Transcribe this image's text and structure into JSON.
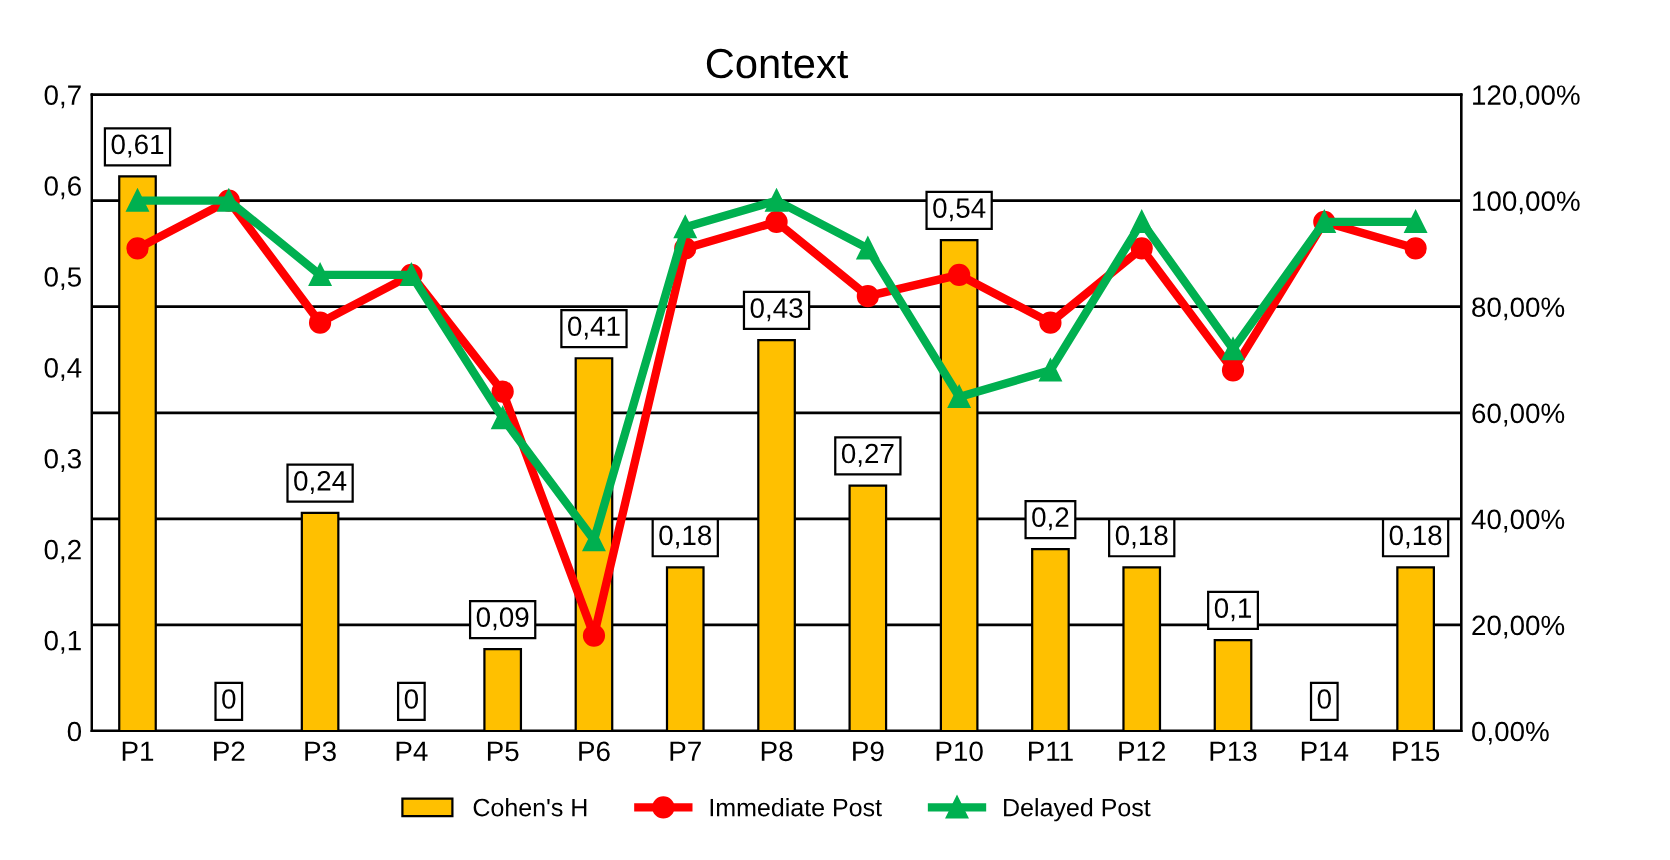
{
  "chart_data": {
    "type": "bar",
    "title": "Context",
    "categories": [
      "P1",
      "P2",
      "P3",
      "P4",
      "P5",
      "P6",
      "P7",
      "P8",
      "P9",
      "P10",
      "P11",
      "P12",
      "P13",
      "P14",
      "P15"
    ],
    "series": [
      {
        "name": "Cohen's H",
        "color": "#ffc000",
        "values": [
          0.61,
          0,
          0.24,
          0,
          0.09,
          0.41,
          0.18,
          0.43,
          0.27,
          0.54,
          0.2,
          0.18,
          0.1,
          0,
          0.18
        ],
        "value_labels": [
          "0,61",
          "0",
          "0,24",
          "0",
          "0,09",
          "0,41",
          "0,18",
          "0,43",
          "0,27",
          "0,54",
          "0,2",
          "0,18",
          "0,1",
          "0",
          "0,18"
        ]
      },
      {
        "name": "Immediate Post",
        "type": "line",
        "axis": "y2",
        "color": "#ff0000",
        "marker": "circle",
        "values": [
          91,
          100,
          77,
          86,
          64,
          18,
          91,
          96,
          82,
          86,
          77,
          91,
          68,
          96,
          91
        ]
      },
      {
        "name": "Delayed Post",
        "type": "line",
        "axis": "y2",
        "color": "#00b050",
        "marker": "triangle",
        "values": [
          100,
          100,
          86,
          86,
          59,
          36,
          95,
          100,
          91,
          63,
          68,
          96,
          72,
          96,
          96
        ]
      }
    ],
    "ylim": [
      0,
      0.7
    ],
    "yticks": [
      0,
      {
        "value": 0.1,
        "label": "0,1"
      },
      {
        "value": 0.2,
        "label": "0,2"
      },
      {
        "value": 0.3,
        "label": "0,3"
      },
      {
        "value": 0.4,
        "label": "0,4"
      },
      {
        "value": 0.5,
        "label": "0,5"
      },
      {
        "value": 0.6,
        "label": "0,6"
      },
      {
        "value": 0.7,
        "label": "0,7"
      }
    ],
    "y2lim": [
      0,
      120
    ],
    "y2ticks": [
      {
        "value": 0,
        "label": "0,00%"
      },
      {
        "value": 20,
        "label": "20,00%"
      },
      {
        "value": 40,
        "label": "40,00%"
      },
      {
        "value": 60,
        "label": "60,00%"
      },
      {
        "value": 80,
        "label": "80,00%"
      },
      {
        "value": 100,
        "label": "100,00%"
      },
      {
        "value": 120,
        "label": "120,00%"
      }
    ],
    "grid": "y2",
    "legend": "bottom"
  }
}
